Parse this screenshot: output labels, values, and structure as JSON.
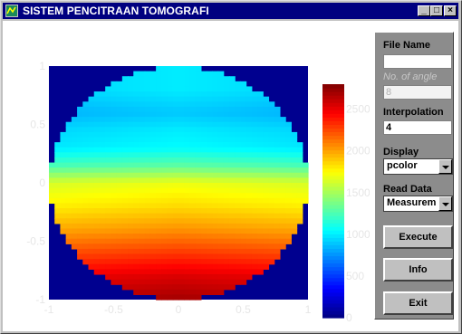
{
  "window": {
    "title": "SISTEM PENCITRAAN TOMOGRAFI",
    "buttons": {
      "minimize": "_",
      "maximize": "□",
      "close": "×"
    }
  },
  "panel": {
    "file_name_label": "File Name",
    "file_name_value": "",
    "angles_label": "No. of angle",
    "angles_value": "8",
    "interpolation_label": "Interpolation",
    "interpolation_value": "4",
    "display_label": "Display",
    "display_value": "pcolor",
    "read_data_label": "Read Data",
    "read_data_value": "Measurem",
    "execute_label": "Execute",
    "info_label": "Info",
    "exit_label": "Exit"
  },
  "plot": {
    "x_ticks": [
      "-1",
      "-0.5",
      "0",
      "0.5",
      "1"
    ],
    "y_ticks": [
      "1",
      "0.5",
      "0",
      "-0.5",
      "-1"
    ],
    "colorbar_ticks": [
      "2500",
      "2000",
      "1500",
      "1000",
      "500",
      "0"
    ],
    "background_color": "#00008f",
    "colormap": "jet"
  },
  "chart_data": {
    "type": "heatmap",
    "title": "",
    "xlabel": "",
    "ylabel": "",
    "xlim": [
      -1,
      1
    ],
    "ylim": [
      -1,
      1
    ],
    "clim": [
      0,
      2800
    ],
    "region": "unit-disk",
    "profile": {
      "y": [
        1.0,
        0.8,
        0.6,
        0.45,
        0.3,
        0.15,
        0.0,
        -0.2,
        -0.4,
        -0.6,
        -0.8,
        -1.0
      ],
      "value": [
        1000,
        1000,
        900,
        1000,
        1050,
        1300,
        1700,
        1850,
        2050,
        2300,
        2550,
        2700
      ]
    },
    "colorbar": {
      "ticks": [
        0,
        500,
        1000,
        1500,
        2000,
        2500
      ],
      "range": [
        0,
        2800
      ]
    }
  }
}
